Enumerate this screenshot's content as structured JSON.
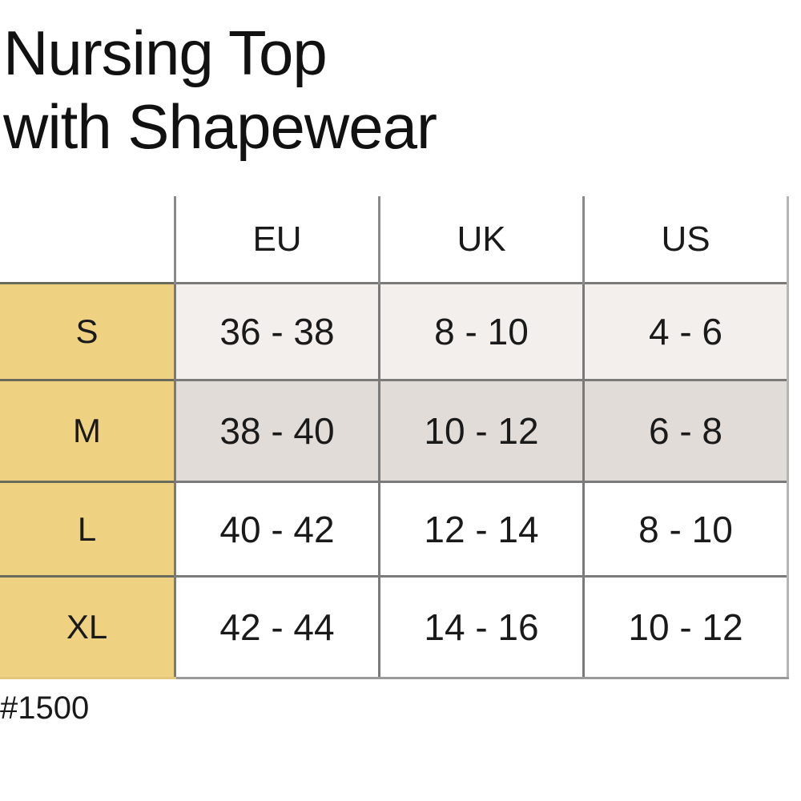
{
  "title": {
    "line1": "Nursing Top",
    "line2": "with Shapewear"
  },
  "table": {
    "columns": [
      "EU",
      "UK",
      "US"
    ],
    "rows": [
      {
        "size": "S",
        "values": [
          "36 - 38",
          "8 - 10",
          "4 - 6"
        ]
      },
      {
        "size": "M",
        "values": [
          "38 - 40",
          "10 - 12",
          "6 - 8"
        ]
      },
      {
        "size": "L",
        "values": [
          "40 - 42",
          "12 - 14",
          "8 - 10"
        ]
      },
      {
        "size": "XL",
        "values": [
          "42 - 44",
          "14 - 16",
          "10 - 12"
        ]
      }
    ]
  },
  "colors": {
    "size_column_bg": "#eed282",
    "row_s_bg": "#f2efec",
    "row_m_bg": "#e1dcd8"
  },
  "footer": {
    "product_code": "#1500"
  }
}
